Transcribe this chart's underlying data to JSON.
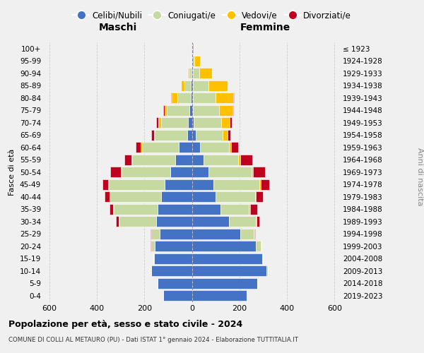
{
  "age_groups": [
    "0-4",
    "5-9",
    "10-14",
    "15-19",
    "20-24",
    "25-29",
    "30-34",
    "35-39",
    "40-44",
    "45-49",
    "50-54",
    "55-59",
    "60-64",
    "65-69",
    "70-74",
    "75-79",
    "80-84",
    "85-89",
    "90-94",
    "95-99",
    "100+"
  ],
  "birth_years": [
    "2019-2023",
    "2014-2018",
    "2009-2013",
    "2004-2008",
    "1999-2003",
    "1994-1998",
    "1989-1993",
    "1984-1988",
    "1979-1983",
    "1974-1978",
    "1969-1973",
    "1964-1968",
    "1959-1963",
    "1954-1958",
    "1949-1953",
    "1944-1948",
    "1939-1943",
    "1934-1938",
    "1929-1933",
    "1924-1928",
    "≤ 1923"
  ],
  "colors": {
    "celibe": "#4472c4",
    "coniugato": "#c5d9a0",
    "vedovo": "#ffc000",
    "divorziato": "#c0001f"
  },
  "maschi": {
    "celibe": [
      120,
      145,
      170,
      160,
      155,
      135,
      150,
      145,
      130,
      115,
      90,
      70,
      55,
      20,
      15,
      10,
      5,
      3,
      2,
      1,
      0
    ],
    "coniugato": [
      0,
      0,
      0,
      3,
      15,
      35,
      155,
      185,
      215,
      235,
      205,
      180,
      155,
      135,
      115,
      95,
      55,
      28,
      8,
      2,
      0
    ],
    "vedovo": [
      0,
      0,
      0,
      0,
      2,
      2,
      2,
      2,
      2,
      2,
      3,
      3,
      5,
      5,
      10,
      10,
      25,
      15,
      5,
      2,
      0
    ],
    "divorziato": [
      0,
      0,
      0,
      0,
      2,
      3,
      12,
      15,
      20,
      25,
      45,
      30,
      20,
      10,
      10,
      5,
      2,
      0,
      0,
      0,
      0
    ]
  },
  "femmine": {
    "celibe": [
      230,
      275,
      315,
      295,
      270,
      205,
      155,
      120,
      100,
      90,
      70,
      50,
      35,
      15,
      8,
      5,
      5,
      5,
      5,
      2,
      0
    ],
    "coniugato": [
      0,
      0,
      5,
      5,
      20,
      55,
      115,
      120,
      165,
      195,
      180,
      145,
      120,
      115,
      115,
      110,
      95,
      65,
      25,
      8,
      2
    ],
    "vedovo": [
      0,
      0,
      0,
      0,
      2,
      2,
      3,
      5,
      5,
      5,
      8,
      8,
      10,
      20,
      35,
      55,
      75,
      80,
      55,
      25,
      5
    ],
    "divorziato": [
      0,
      0,
      0,
      0,
      2,
      5,
      12,
      30,
      30,
      35,
      50,
      50,
      30,
      12,
      10,
      5,
      2,
      0,
      0,
      0,
      0
    ]
  },
  "xlim": 620,
  "title": "Popolazione per età, sesso e stato civile - 2024",
  "subtitle": "COMUNE DI COLLI AL METAURO (PU) - Dati ISTAT 1° gennaio 2024 - Elaborazione TUTTITALIA.IT",
  "xlabel_left": "Maschi",
  "xlabel_right": "Femmine",
  "ylabel": "Fasce di età",
  "ylabel_right": "Anni di nascita",
  "bg_color": "#f0f0f0",
  "grid_color": "#cccccc"
}
